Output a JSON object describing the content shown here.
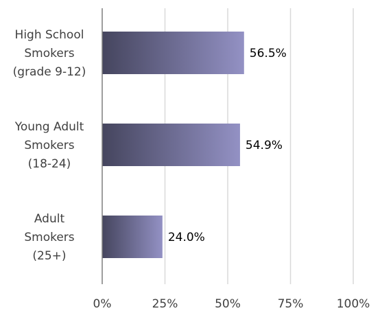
{
  "chart_data": {
    "type": "bar",
    "orientation": "horizontal",
    "categories": [
      [
        "High School",
        "Smokers",
        "(grade 9-12)"
      ],
      [
        "Young Adult",
        "Smokers",
        "(18-24)"
      ],
      [
        "Adult",
        "Smokers",
        "(25+)"
      ]
    ],
    "values": [
      56.5,
      54.9,
      24.0
    ],
    "data_labels": [
      "56.5%",
      "54.9%",
      "24.0%"
    ],
    "xlim": [
      0,
      100
    ],
    "xticks": [
      0,
      25,
      50,
      75,
      100
    ],
    "xtick_labels": [
      "0%",
      "25%",
      "50%",
      "75%",
      "100%"
    ],
    "grid": true,
    "legend": "none",
    "bar_gradient": [
      "#45455e",
      "#9391c4"
    ],
    "grid_color": "#d9d9d9",
    "axis_color": "#7f7f7f"
  }
}
